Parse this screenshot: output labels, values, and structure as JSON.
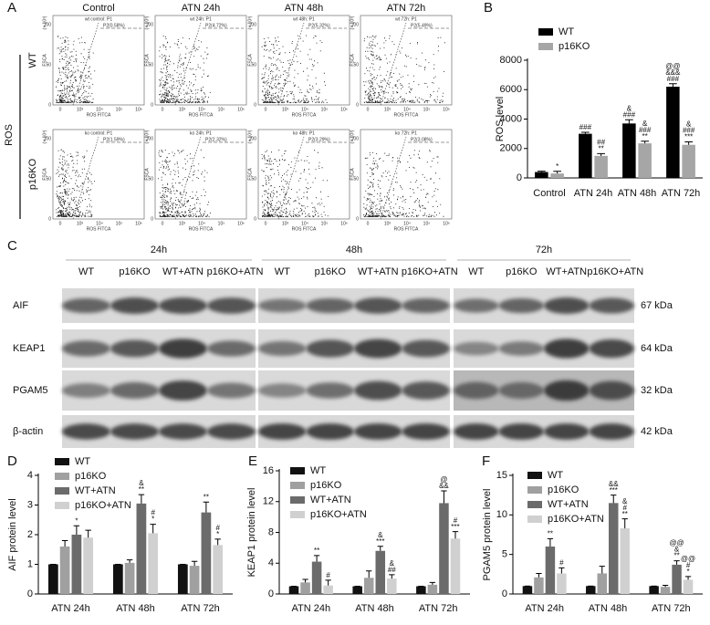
{
  "panel_a": {
    "label": "A",
    "columns": [
      "Control",
      "ATN 24h",
      "ATN 48h",
      "ATN 72h"
    ],
    "rows": [
      "WT",
      "p16KO"
    ],
    "group_label": "ROS",
    "plots": [
      [
        {
          "title": "wt control: P1",
          "gate": "P2(0.58%)"
        },
        {
          "title": "wt 24h: P1",
          "gate": "P2(4.72%)"
        },
        {
          "title": "wt 48h: P1",
          "gate": "P2(5.32%)"
        },
        {
          "title": "wt 72h: P1",
          "gate": "P2(5.49%)"
        }
      ],
      [
        {
          "title": "ko control: P1",
          "gate": "P2(1.59%)"
        },
        {
          "title": "ko 24h: P1",
          "gate": "P2(2.32%)"
        },
        {
          "title": "ko 48h: P1",
          "gate": "P2(3.29%)"
        },
        {
          "title": "ko 72h: P1",
          "gate": "P2(3.08%)"
        }
      ]
    ],
    "x_label": "ROS FITCA",
    "y_label": "FSCA",
    "x_ticks": [
      "0",
      "10³",
      "10⁴",
      "10⁵",
      "10⁶"
    ],
    "y_ticks": [
      "0",
      "50",
      "100"
    ],
    "y_scale": "(× 10³)"
  },
  "panel_c": {
    "label": "C",
    "timepoints": [
      "24h",
      "48h",
      "72h"
    ],
    "lanes": [
      "WT",
      "p16KO",
      "WT+ATN",
      "p16KO+ATN"
    ],
    "proteins": [
      {
        "name": "AIF",
        "size": "67 kDa"
      },
      {
        "name": "KEAP1",
        "size": "64 kDa"
      },
      {
        "name": "PGAM5",
        "size": "32 kDa"
      },
      {
        "name": "β-actin",
        "size": "42 kDa"
      }
    ]
  },
  "chart_data": [
    {
      "type": "bar",
      "panel_label": "B",
      "y_label": "ROS level",
      "categories": [
        "Control",
        "ATN 24h",
        "ATN 48h",
        "ATN 72h"
      ],
      "series": [
        {
          "name": "WT",
          "color": "#000000",
          "values": [
            400,
            3000,
            3700,
            6200
          ],
          "errors": [
            60,
            100,
            250,
            200
          ],
          "annotations": [
            [],
            [
              "###"
            ],
            [
              "&",
              "###"
            ],
            [
              "@@",
              "&&&",
              "###"
            ]
          ]
        },
        {
          "name": "p16KO",
          "color": "#a6a6a6",
          "values": [
            300,
            1500,
            2350,
            2250
          ],
          "errors": [
            150,
            150,
            150,
            200
          ],
          "annotations": [
            [
              "*"
            ],
            [
              "##",
              "**"
            ],
            [
              "&",
              "###",
              "**"
            ],
            [
              "&",
              "###",
              "***"
            ]
          ]
        }
      ],
      "ylim": [
        0,
        8000
      ],
      "yticks": [
        0,
        2000,
        4000,
        6000,
        8000
      ],
      "legend": "upper left"
    },
    {
      "type": "bar",
      "panel_label": "D",
      "y_label": "AIF protein level",
      "categories": [
        "ATN 24h",
        "ATN 48h",
        "ATN 72h"
      ],
      "series": [
        {
          "name": "WT",
          "color": "#111111",
          "values": [
            1,
            1,
            1
          ],
          "errors": [
            0,
            0,
            0
          ],
          "annotations": [
            [],
            [],
            []
          ]
        },
        {
          "name": "p16KO",
          "color": "#a0a0a0",
          "values": [
            1.6,
            1.05,
            0.95
          ],
          "errors": [
            0.2,
            0.1,
            0.15
          ],
          "annotations": [
            [],
            [],
            []
          ]
        },
        {
          "name": "WT+ATN",
          "color": "#6b6b6b",
          "values": [
            2.0,
            3.05,
            2.75
          ],
          "errors": [
            0.3,
            0.3,
            0.35
          ],
          "annotations": [
            [
              "*"
            ],
            [
              "&",
              "**"
            ],
            [
              "**"
            ]
          ]
        },
        {
          "name": "p16KO+ATN",
          "color": "#d0d0d0",
          "values": [
            1.9,
            2.05,
            1.65
          ],
          "errors": [
            0.25,
            0.3,
            0.2
          ],
          "annotations": [
            [],
            [
              "#",
              "*"
            ],
            [
              "#",
              "*"
            ]
          ]
        }
      ],
      "ylim": [
        0,
        4
      ],
      "yticks": [
        0,
        1,
        2,
        3,
        4
      ],
      "legend": "upper left"
    },
    {
      "type": "bar",
      "panel_label": "E",
      "y_label": "KEAP1 protein level",
      "categories": [
        "ATN 24h",
        "ATN 48h",
        "ATN 72h"
      ],
      "series": [
        {
          "name": "WT",
          "color": "#111111",
          "values": [
            1,
            1,
            1
          ],
          "errors": [
            0,
            0,
            0
          ],
          "annotations": [
            [],
            [],
            []
          ]
        },
        {
          "name": "p16KO",
          "color": "#a0a0a0",
          "values": [
            1.5,
            2.1,
            1.2
          ],
          "errors": [
            0.4,
            0.9,
            0.3
          ],
          "annotations": [
            [],
            [],
            []
          ]
        },
        {
          "name": "WT+ATN",
          "color": "#6b6b6b",
          "values": [
            4.2,
            5.6,
            11.8
          ],
          "errors": [
            0.8,
            0.6,
            1.6
          ],
          "annotations": [
            [
              "**"
            ],
            [
              "&",
              "***"
            ],
            [
              "@",
              "&&"
            ]
          ]
        },
        {
          "name": "p16KO+ATN",
          "color": "#d0d0d0",
          "values": [
            1.1,
            2.0,
            7.2
          ],
          "errors": [
            0.7,
            0.5,
            0.9
          ],
          "annotations": [
            [
              "#"
            ],
            [
              "&",
              "##"
            ],
            [
              "#",
              "***"
            ]
          ]
        }
      ],
      "ylim": [
        0,
        16
      ],
      "yticks": [
        0,
        4,
        8,
        12,
        16
      ],
      "legend": "upper left"
    },
    {
      "type": "bar",
      "panel_label": "F",
      "y_label": "PGAM5 protein level",
      "categories": [
        "ATN 24h",
        "ATN 48h",
        "ATN 72h"
      ],
      "series": [
        {
          "name": "WT",
          "color": "#111111",
          "values": [
            1,
            1,
            1
          ],
          "errors": [
            0,
            0,
            0
          ],
          "annotations": [
            [],
            [],
            []
          ]
        },
        {
          "name": "p16KO",
          "color": "#a0a0a0",
          "values": [
            2.1,
            2.6,
            0.9
          ],
          "errors": [
            0.5,
            0.9,
            0.2
          ],
          "annotations": [
            [],
            [],
            []
          ]
        },
        {
          "name": "WT+ATN",
          "color": "#6b6b6b",
          "values": [
            6.0,
            11.5,
            3.7
          ],
          "errors": [
            1.0,
            1.0,
            0.5
          ],
          "annotations": [
            [
              "**"
            ],
            [
              "&&",
              "***"
            ],
            [
              "@@",
              "&",
              "**"
            ]
          ]
        },
        {
          "name": "p16KO+ATN",
          "color": "#d0d0d0",
          "values": [
            2.6,
            8.3,
            1.8
          ],
          "errors": [
            0.7,
            1.2,
            0.4
          ],
          "annotations": [
            [
              "#"
            ],
            [
              "&",
              "#",
              "**"
            ],
            [
              "@@",
              "#",
              "*"
            ]
          ]
        }
      ],
      "ylim": [
        0,
        15
      ],
      "yticks": [
        0,
        5,
        10,
        15
      ],
      "legend": "upper left"
    }
  ]
}
